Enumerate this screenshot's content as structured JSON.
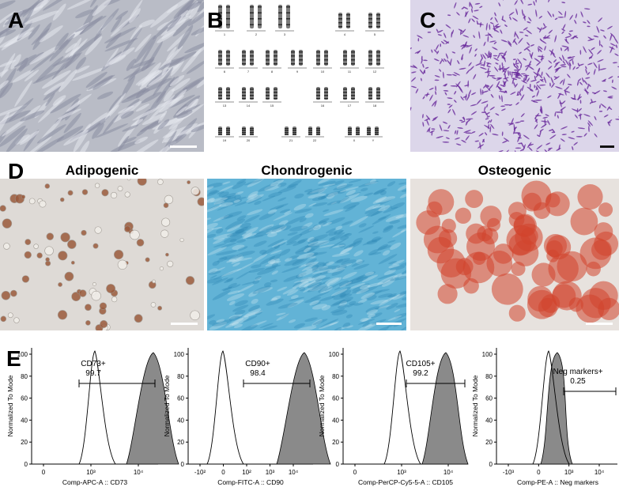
{
  "panel_letters": {
    "a": "A",
    "b": "B",
    "c": "C",
    "d": "D",
    "e": "E"
  },
  "karyotype": {
    "labels": [
      "1",
      "2",
      "3",
      "4",
      "5",
      "6",
      "7",
      "8",
      "9",
      "10",
      "11",
      "12",
      "13",
      "14",
      "15",
      "16",
      "17",
      "18",
      "19",
      "20",
      "21",
      "22",
      "X",
      "Y"
    ]
  },
  "differentiation": {
    "titles": [
      "Adipogenic",
      "Chondrogenic",
      "Osteogenic"
    ],
    "colors": {
      "adipo_bg": "#dcd8d3",
      "adipo_drop": "#9a5a3c",
      "chondro": "#4aa3c9",
      "osteo": "#d2432b"
    }
  },
  "flow": {
    "ylabel": "Normalized To Mode",
    "yticks": [
      "0",
      "20",
      "40",
      "60",
      "80",
      "100"
    ],
    "plots": [
      {
        "marker": "CD73+",
        "pct": "99.7",
        "xlabel": "Comp-APC-A :: CD73",
        "xticks": [
          "0",
          "10³",
          "10⁴"
        ]
      },
      {
        "marker": "CD90+",
        "pct": "98.4",
        "xlabel": "Comp-FITC-A :: CD90",
        "xticks": [
          "-10²",
          "0",
          "10²",
          "10³",
          "10⁴"
        ]
      },
      {
        "marker": "CD105+",
        "pct": "99.2",
        "xlabel": "Comp-PerCP-Cy5-5-A :: CD105",
        "xticks": [
          "0",
          "10³",
          "10⁴"
        ]
      },
      {
        "marker": "Neg markers+",
        "pct": "0.25",
        "xlabel": "Comp-PE-A :: Neg markers",
        "xticks": [
          "-10³",
          "0",
          "10³",
          "10⁴"
        ]
      }
    ]
  }
}
